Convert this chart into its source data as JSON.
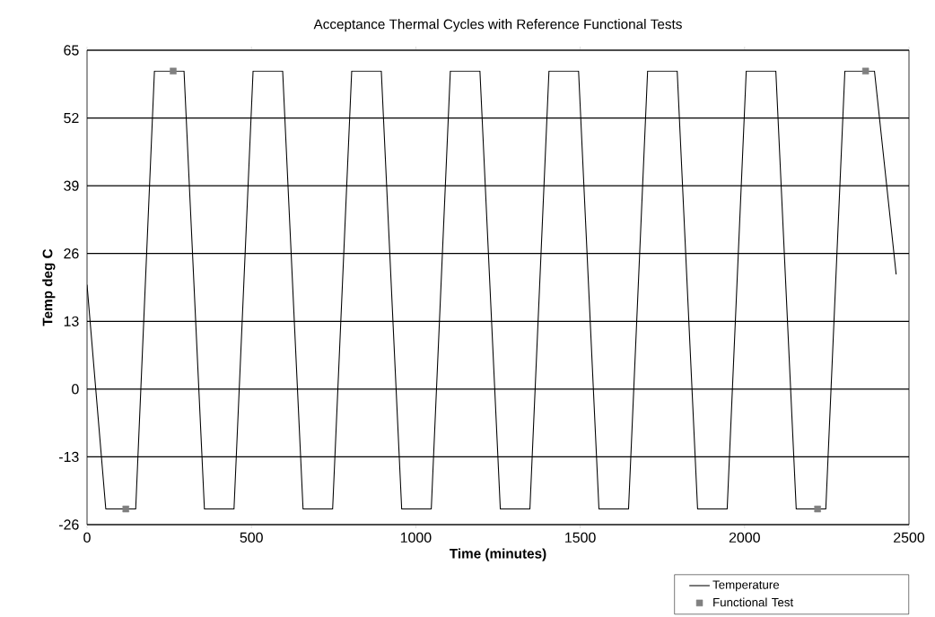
{
  "chart_data": {
    "type": "line",
    "title": "Acceptance Thermal Cycles with Reference Functional Tests",
    "xlabel": "Time (minutes)",
    "ylabel": "Temp deg C",
    "xlim": [
      0,
      2500
    ],
    "xticks": [
      0,
      500,
      1000,
      1500,
      2000,
      2500
    ],
    "ylim": [
      -26,
      65
    ],
    "yticks": [
      -26,
      -13,
      0,
      13,
      26,
      39,
      52,
      65
    ],
    "grid": "y",
    "legend": "bottom right",
    "series": [
      {
        "name": "Temperature",
        "color": "#000000",
        "x": [
          0,
          57,
          148,
          205,
          295,
          357,
          447,
          505,
          595,
          657,
          747,
          805,
          895,
          957,
          1047,
          1105,
          1195,
          1257,
          1347,
          1405,
          1495,
          1557,
          1647,
          1705,
          1795,
          1857,
          1947,
          2005,
          2095,
          2157,
          2247,
          2305,
          2395,
          2461
        ],
        "values": [
          20,
          -23,
          -23,
          61,
          61,
          -23,
          -23,
          61,
          61,
          -23,
          -23,
          61,
          61,
          -23,
          -23,
          61,
          61,
          -23,
          -23,
          61,
          61,
          -23,
          -23,
          61,
          61,
          -23,
          -23,
          61,
          61,
          -23,
          -23,
          61,
          61,
          22
        ]
      },
      {
        "name": "Functional Test",
        "type": "scatter",
        "marker": "square",
        "color": "#808080",
        "x": [
          118,
          262,
          2222,
          2368
        ],
        "values": [
          -23,
          61,
          -23,
          61
        ]
      }
    ]
  }
}
